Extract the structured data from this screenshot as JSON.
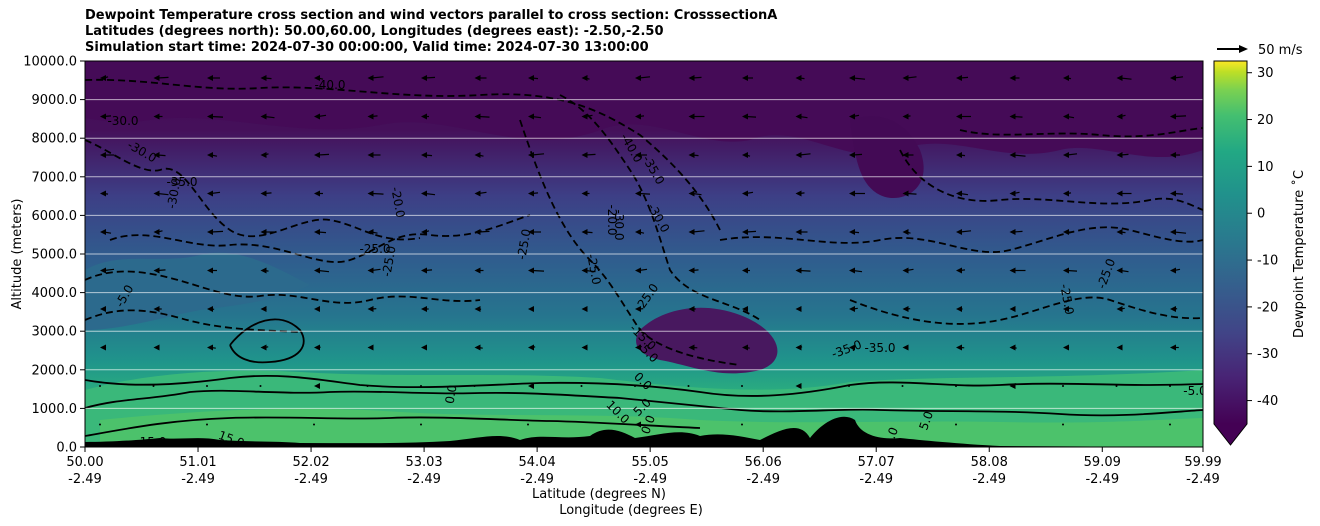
{
  "title_lines": [
    "Dewpoint Temperature cross section and wind vectors parallel to cross section: CrosssectionA",
    "Latitudes (degrees north): 50.00,60.00, Longitudes (degrees east): -2.50,-2.50",
    "Simulation start time: 2024-07-30 00:00:00, Valid time: 2024-07-30 13:00:00"
  ],
  "chart_data": {
    "type": "heatmap",
    "ylabel": "Altitude (meters)",
    "xlabel_lines": [
      "Latitude (degrees N)",
      "Longitude (degrees E)"
    ],
    "ylim": [
      0,
      10000
    ],
    "y_ticks": [
      "0.0",
      "1000.0",
      "2000.0",
      "3000.0",
      "4000.0",
      "5000.0",
      "6000.0",
      "7000.0",
      "8000.0",
      "9000.0",
      "10000.0"
    ],
    "x_ticks": [
      {
        "lat": "50.00",
        "lon": "-2.49"
      },
      {
        "lat": "51.01",
        "lon": "-2.49"
      },
      {
        "lat": "52.02",
        "lon": "-2.49"
      },
      {
        "lat": "53.03",
        "lon": "-2.49"
      },
      {
        "lat": "54.04",
        "lon": "-2.49"
      },
      {
        "lat": "55.05",
        "lon": "-2.49"
      },
      {
        "lat": "56.06",
        "lon": "-2.49"
      },
      {
        "lat": "57.07",
        "lon": "-2.49"
      },
      {
        "lat": "58.08",
        "lon": "-2.49"
      },
      {
        "lat": "59.09",
        "lon": "-2.49"
      },
      {
        "lat": "59.99",
        "lon": "-2.49"
      }
    ],
    "grid": true,
    "colorbar": {
      "label": "Dewpoint Temperature $^\\circ$C",
      "label_display": "Dewpoint Temperature ˚C",
      "ticks": [
        -40,
        -30,
        -20,
        -10,
        0,
        10,
        20,
        30
      ],
      "range": [
        -45,
        32.5
      ],
      "extend": "min",
      "colormap": "viridis"
    },
    "quiver_key": "50 m/s",
    "contour_labels": [
      "-40.0",
      "-30.0",
      "-30.0",
      "-35.0",
      "-30.0",
      "-20.0",
      "-30.0",
      "-25.0",
      "-25.0",
      "-25.0",
      "-40.0",
      "-35.0",
      "-30.0",
      "-20.0",
      "-5.0",
      "-25.0",
      "-25.0",
      "-15.0",
      "-5.0",
      "0.0",
      "5.0",
      "10.0",
      "0.0",
      "-35.0",
      "-35.0",
      "-25.0",
      "-25.0",
      "-5.0",
      "0.0",
      "15.0",
      "15.0",
      "5.0",
      "0.0"
    ]
  }
}
